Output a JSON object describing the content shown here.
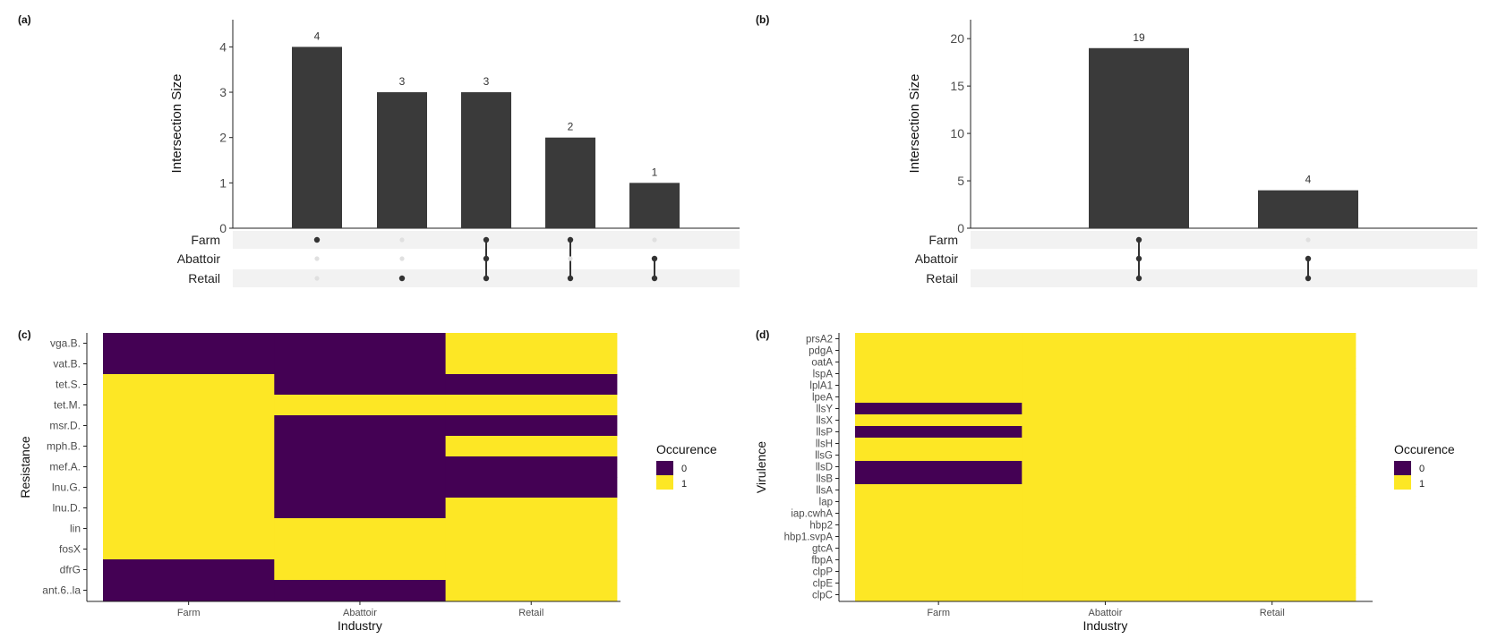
{
  "colors": {
    "bar": "#3a3a3a",
    "dot_on": "#333333",
    "dot_off": "#e0e0e0",
    "stripe": "#f2f2f2",
    "viridis_0": "#440154",
    "viridis_1": "#fde725",
    "axis": "#222222",
    "text": "#4d4d4d"
  },
  "chart_data": [
    {
      "type": "bar",
      "panel_label": "(a)",
      "ylabel": "Intersection Size",
      "ylim": [
        0,
        4.6
      ],
      "yticks": [
        "0",
        "1",
        "2",
        "3",
        "4"
      ],
      "values": [
        4,
        3,
        3,
        2,
        1
      ],
      "value_labels": [
        "4",
        "3",
        "3",
        "2",
        "1"
      ],
      "sets": [
        "Farm",
        "Abattoir",
        "Retail"
      ],
      "membership": [
        [
          1,
          0,
          0
        ],
        [
          0,
          0,
          1
        ],
        [
          1,
          1,
          1
        ],
        [
          1,
          0,
          1
        ],
        [
          0,
          1,
          1
        ]
      ]
    },
    {
      "type": "bar",
      "panel_label": "(b)",
      "ylabel": "Intersection Size",
      "ylim": [
        0,
        22
      ],
      "yticks": [
        "0",
        "5",
        "10",
        "15",
        "20"
      ],
      "values": [
        19,
        4
      ],
      "value_labels": [
        "19",
        "4"
      ],
      "sets": [
        "Farm",
        "Abattoir",
        "Retail"
      ],
      "membership": [
        [
          1,
          1,
          1
        ],
        [
          0,
          1,
          1
        ]
      ]
    },
    {
      "type": "heatmap",
      "panel_label": "(c)",
      "xlabel": "Industry",
      "ylabel": "Resistance",
      "columns": [
        "Farm",
        "Abattoir",
        "Retail"
      ],
      "rows": [
        "vga.B.",
        "vat.B.",
        "tet.S.",
        "tet.M.",
        "msr.D.",
        "mph.B.",
        "mef.A.",
        "lnu.G.",
        "lnu.D.",
        "lin",
        "fosX",
        "dfrG",
        "ant.6..la"
      ],
      "values": [
        [
          0,
          0,
          1
        ],
        [
          0,
          0,
          1
        ],
        [
          1,
          0,
          0
        ],
        [
          1,
          1,
          1
        ],
        [
          1,
          0,
          0
        ],
        [
          1,
          0,
          1
        ],
        [
          1,
          0,
          0
        ],
        [
          1,
          0,
          0
        ],
        [
          1,
          0,
          1
        ],
        [
          1,
          1,
          1
        ],
        [
          1,
          1,
          1
        ],
        [
          0,
          1,
          1
        ],
        [
          0,
          0,
          1
        ]
      ],
      "legend_title": "Occurence",
      "legend_labels": [
        "0",
        "1"
      ]
    },
    {
      "type": "heatmap",
      "panel_label": "(d)",
      "xlabel": "Industry",
      "ylabel": "Virulence",
      "columns": [
        "Farm",
        "Abattoir",
        "Retail"
      ],
      "rows": [
        "prsA2",
        "pdgA",
        "oatA",
        "lspA",
        "lplA1",
        "lpeA",
        "llsY",
        "llsX",
        "llsP",
        "llsH",
        "llsG",
        "llsD",
        "llsB",
        "llsA",
        "lap",
        "iap.cwhA",
        "hbp2",
        "hbp1.svpA",
        "gtcA",
        "fbpA",
        "clpP",
        "clpE",
        "clpC"
      ],
      "values": [
        [
          1,
          1,
          1
        ],
        [
          1,
          1,
          1
        ],
        [
          1,
          1,
          1
        ],
        [
          1,
          1,
          1
        ],
        [
          1,
          1,
          1
        ],
        [
          1,
          1,
          1
        ],
        [
          0,
          1,
          1
        ],
        [
          1,
          1,
          1
        ],
        [
          0,
          1,
          1
        ],
        [
          1,
          1,
          1
        ],
        [
          1,
          1,
          1
        ],
        [
          0,
          1,
          1
        ],
        [
          0,
          1,
          1
        ],
        [
          1,
          1,
          1
        ],
        [
          1,
          1,
          1
        ],
        [
          1,
          1,
          1
        ],
        [
          1,
          1,
          1
        ],
        [
          1,
          1,
          1
        ],
        [
          1,
          1,
          1
        ],
        [
          1,
          1,
          1
        ],
        [
          1,
          1,
          1
        ],
        [
          1,
          1,
          1
        ],
        [
          1,
          1,
          1
        ]
      ],
      "legend_title": "Occurence",
      "legend_labels": [
        "0",
        "1"
      ]
    }
  ]
}
